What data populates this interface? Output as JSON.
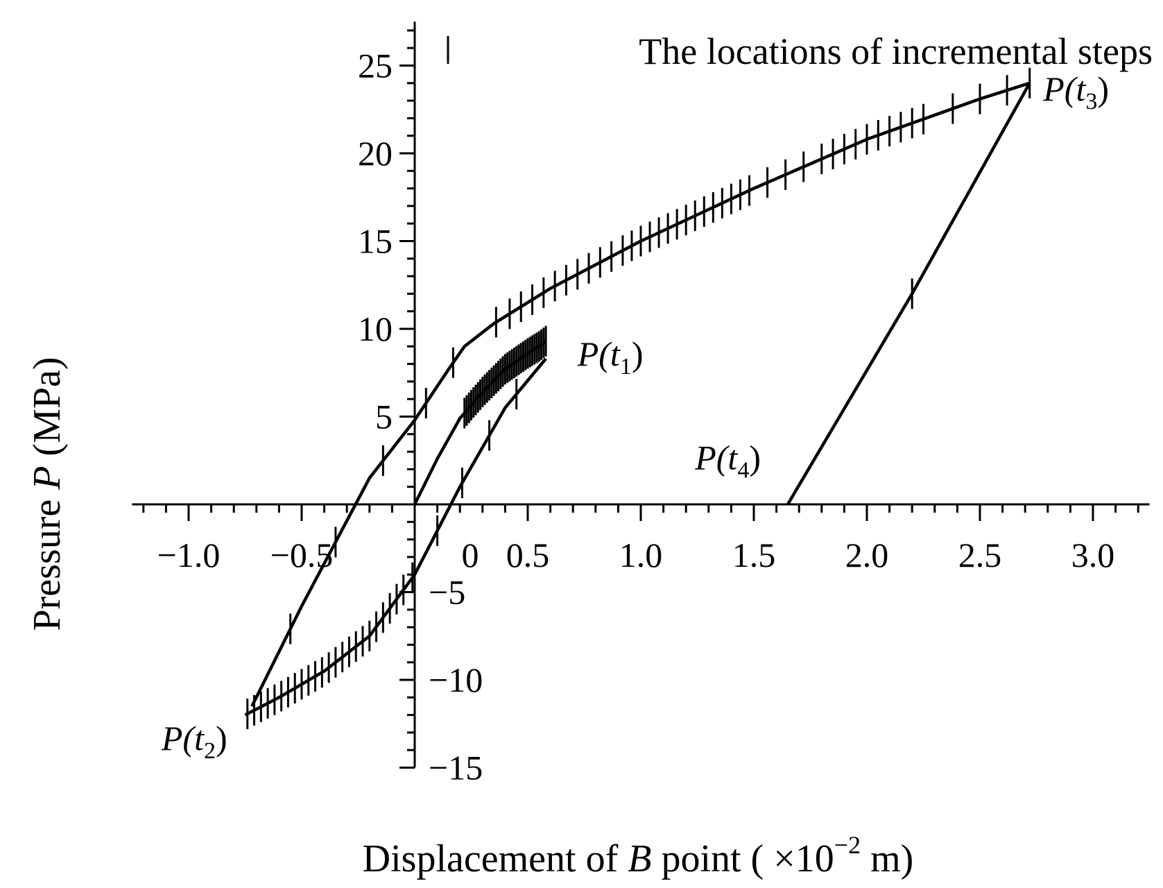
{
  "chart_data": {
    "type": "line",
    "xlabel": {
      "pre": "Displacement of ",
      "italic": "B",
      "post": " point  ( ×10",
      "sup": "−2",
      "unit": " m)"
    },
    "ylabel": {
      "pre": "Pressure ",
      "italic": "P",
      "post": " (MPa)"
    },
    "xlim": [
      -1.25,
      3.25
    ],
    "ylim": [
      -15,
      27.5
    ],
    "x_ticks": [
      -1.0,
      -0.5,
      0,
      0.5,
      1.0,
      1.5,
      2.0,
      2.5,
      3.0
    ],
    "x_tick_labels": [
      "−1.0",
      "−0.5",
      "0",
      "0.5",
      "1.0",
      "1.5",
      "2.0",
      "2.5",
      "3.0"
    ],
    "y_ticks": [
      -15,
      -10,
      -5,
      5,
      10,
      15,
      20,
      25
    ],
    "y_tick_labels": [
      "−15",
      "−10",
      "−5",
      "5",
      "10",
      "15",
      "20",
      "25"
    ],
    "grid": false,
    "legend": {
      "position": "top-right",
      "marker": "vertical-tick",
      "label": "The locations of incremental steps"
    },
    "series": [
      {
        "segment": "initial-loading",
        "x": [
          0,
          0.1,
          0.2,
          0.3,
          0.4,
          0.5,
          0.55,
          0.58
        ],
        "y": [
          0,
          2.6,
          4.9,
          6.4,
          7.7,
          8.6,
          9.0,
          9.3
        ]
      },
      {
        "segment": "unloading-reverse",
        "x": [
          0.58,
          0.4,
          0.2,
          0,
          -0.2,
          -0.4,
          -0.6,
          -0.75
        ],
        "y": [
          8.3,
          5.5,
          1.0,
          -4.0,
          -7.5,
          -9.5,
          -11.0,
          -12.0
        ]
      },
      {
        "segment": "reloading",
        "x": [
          -0.72,
          -0.5,
          -0.2,
          0,
          0.15,
          0.22,
          0.35,
          0.6,
          1.0,
          1.5,
          2.0,
          2.5,
          2.72
        ],
        "y": [
          -11.5,
          -5.8,
          1.5,
          4.8,
          7.7,
          9.0,
          10.3,
          12.3,
          15.0,
          18.0,
          20.8,
          23.1,
          24.0
        ]
      },
      {
        "segment": "final-unloading",
        "x": [
          2.72,
          2.2,
          1.65
        ],
        "y": [
          24.0,
          12.0,
          0
        ]
      }
    ],
    "step_markers": [
      {
        "segment": "initial-loading",
        "x": [
          0.22,
          0.23,
          0.24,
          0.25,
          0.26,
          0.27,
          0.28,
          0.29,
          0.3,
          0.31,
          0.32,
          0.33,
          0.34,
          0.35,
          0.36,
          0.37,
          0.38,
          0.39,
          0.4,
          0.41,
          0.42,
          0.43,
          0.44,
          0.45,
          0.46,
          0.47,
          0.48,
          0.49,
          0.5,
          0.51,
          0.52,
          0.53,
          0.54,
          0.55,
          0.56,
          0.57,
          0.58
        ]
      },
      {
        "segment": "unloading-reverse",
        "x": [
          0.45,
          0.33,
          0.21,
          0.1,
          -0.01,
          -0.05,
          -0.08,
          -0.11,
          -0.14,
          -0.17,
          -0.2,
          -0.23,
          -0.26,
          -0.29,
          -0.32,
          -0.35,
          -0.38,
          -0.41,
          -0.44,
          -0.47,
          -0.5,
          -0.53,
          -0.56,
          -0.59,
          -0.62,
          -0.65,
          -0.68,
          -0.71,
          -0.74
        ]
      },
      {
        "segment": "reloading",
        "x": [
          -0.55,
          -0.35,
          -0.14,
          0.05,
          0.17,
          0.36,
          0.42,
          0.47,
          0.52,
          0.57,
          0.62,
          0.67,
          0.72,
          0.77,
          0.82,
          0.87,
          0.92,
          0.96,
          1.0,
          1.04,
          1.08,
          1.12,
          1.16,
          1.2,
          1.24,
          1.28,
          1.32,
          1.36,
          1.4,
          1.44,
          1.48,
          1.56,
          1.64,
          1.72,
          1.8,
          1.85,
          1.9,
          1.95,
          2.0,
          2.05,
          2.1,
          2.15,
          2.2,
          2.25,
          2.38,
          2.5,
          2.62,
          2.72
        ]
      },
      {
        "segment": "final-unloading",
        "x": [
          2.2
        ]
      }
    ],
    "annotations": [
      {
        "base": "P(t",
        "sub": "1",
        "close": ")",
        "at": [
          0.72,
          7.9
        ]
      },
      {
        "base": "P(t",
        "sub": "2",
        "close": ")",
        "at": [
          -1.12,
          -14.0
        ]
      },
      {
        "base": "P(t",
        "sub": "3",
        "close": ")",
        "at": [
          2.78,
          23.0
        ]
      },
      {
        "base": "P(t",
        "sub": "4",
        "close": ")",
        "at": [
          1.24,
          2.0
        ]
      }
    ]
  }
}
